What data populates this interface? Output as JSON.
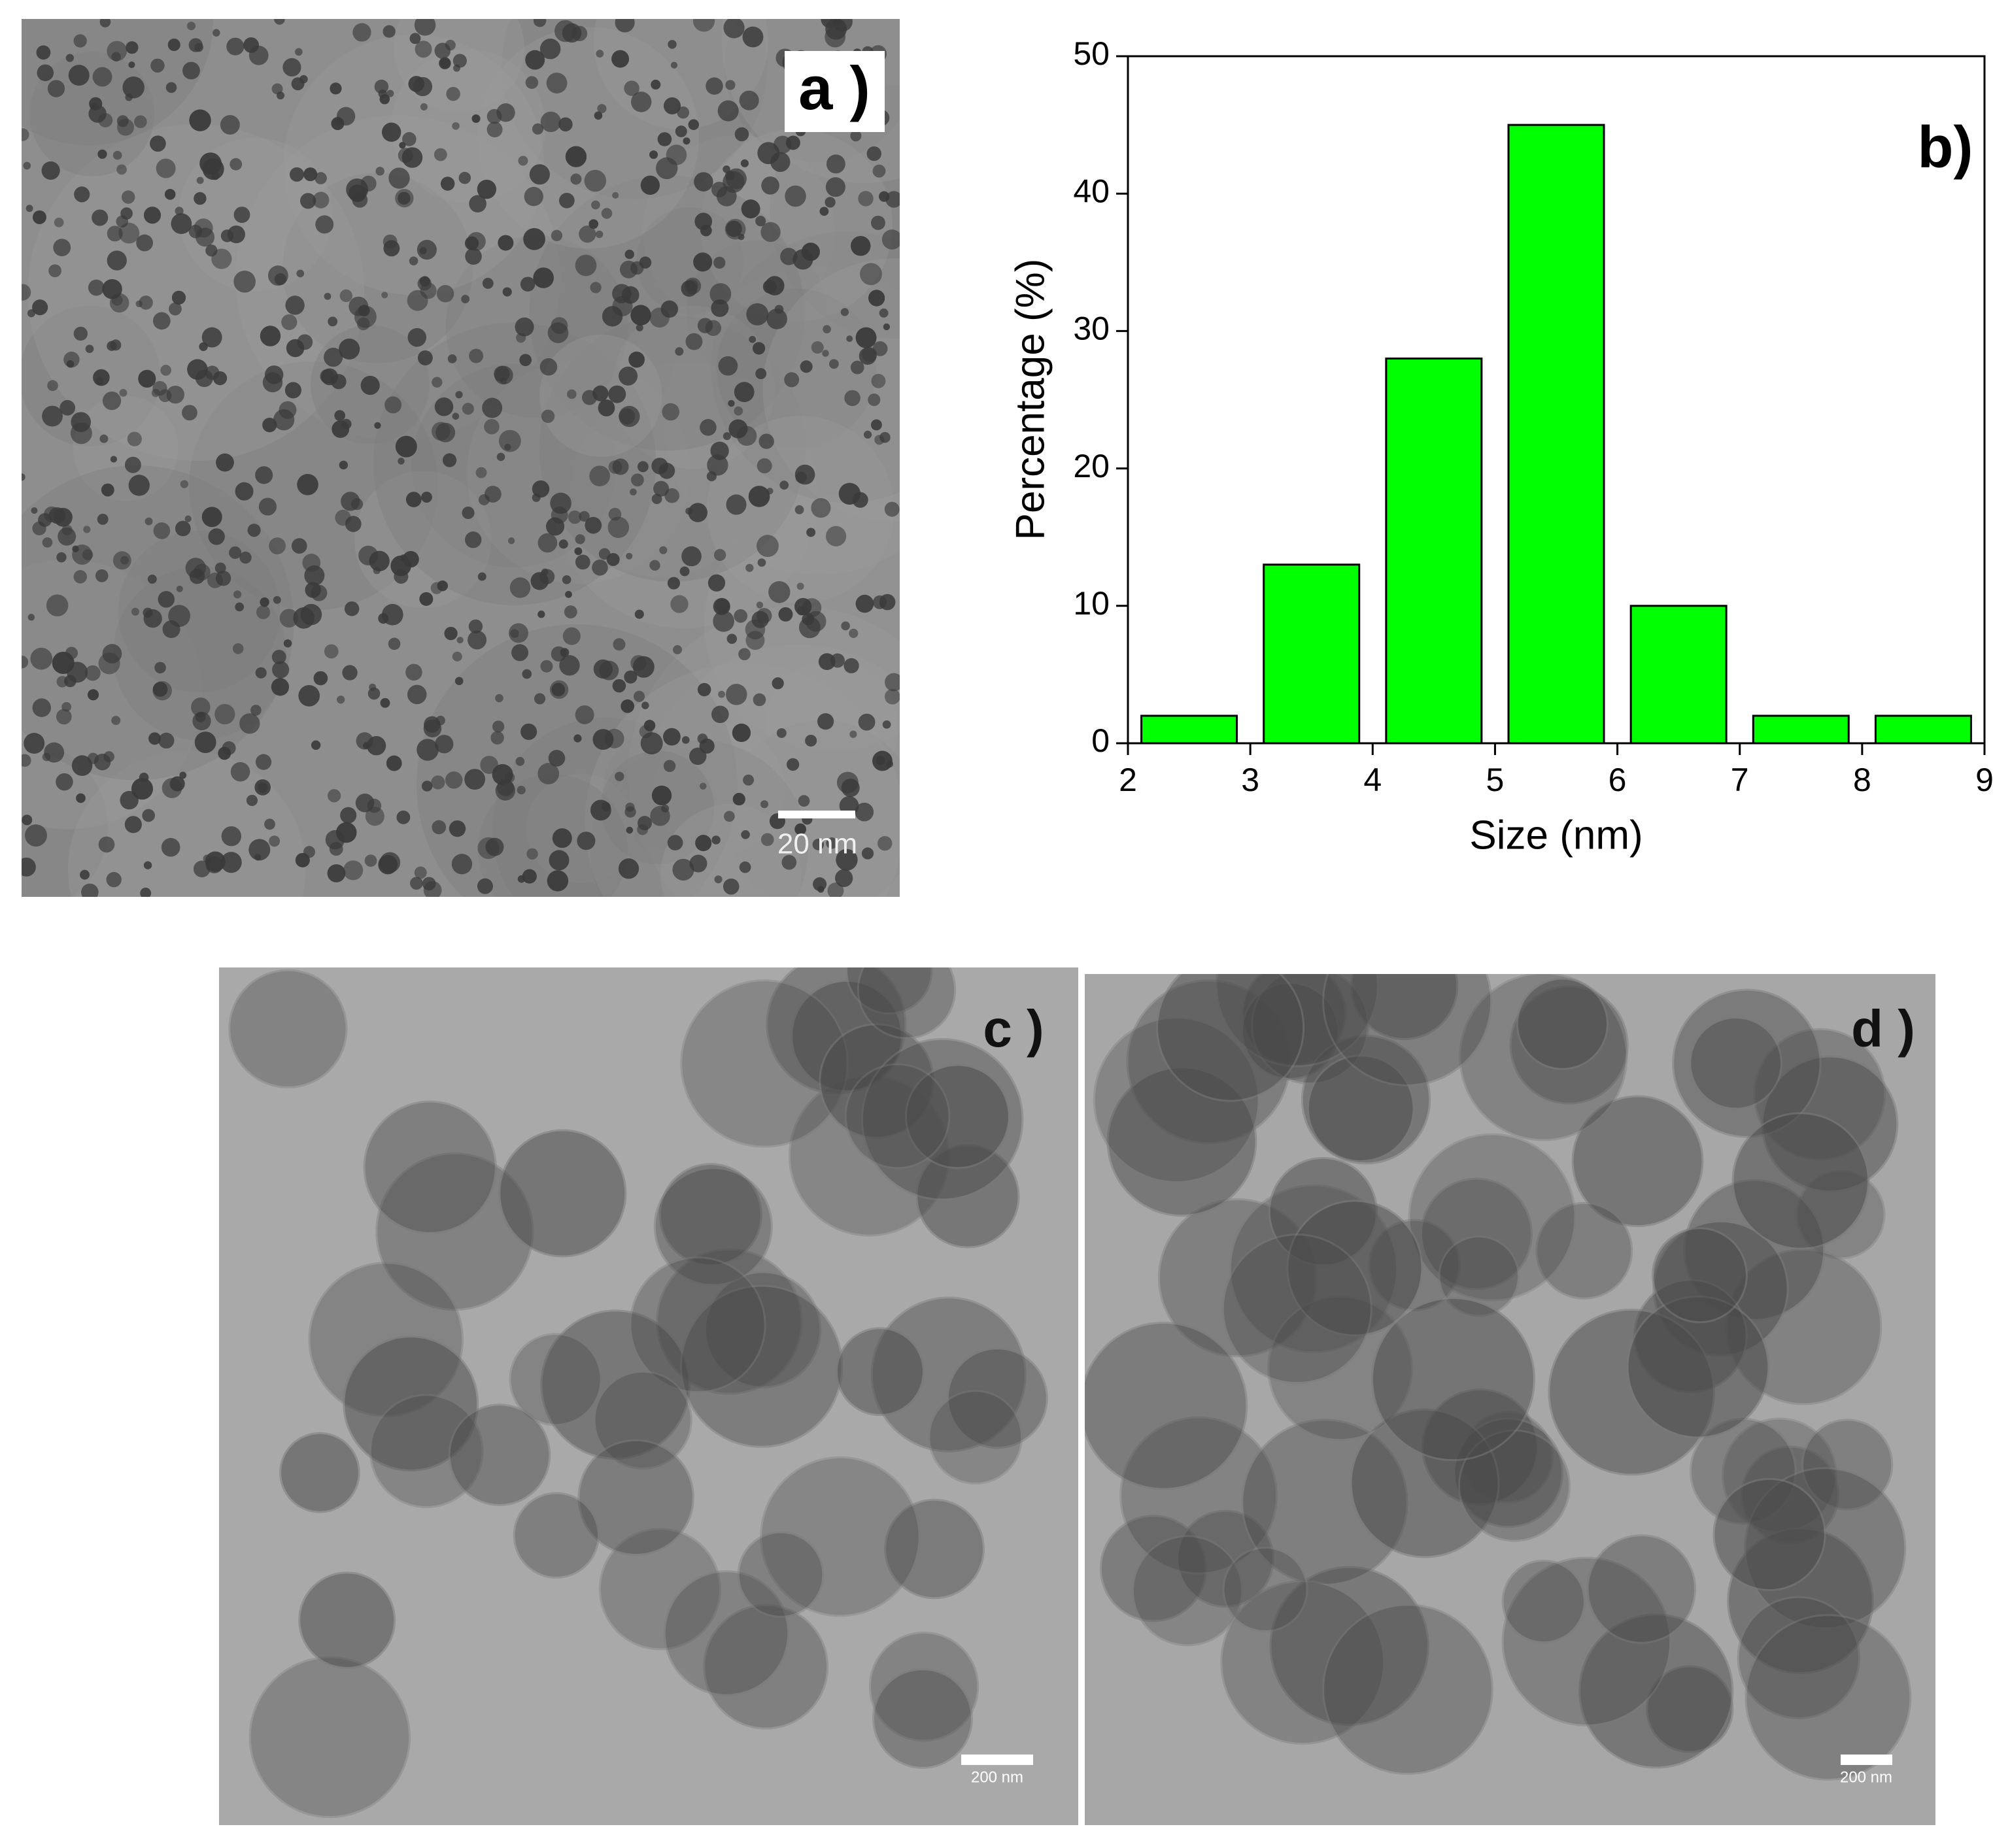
{
  "chart_data": {
    "type": "histogram",
    "panel_label": "b)",
    "x_label": "Size (nm)",
    "y_label": "Percentage (%)",
    "bins": [
      2,
      3,
      4,
      5,
      6,
      7,
      8,
      9
    ],
    "values": [
      2,
      13,
      28,
      45,
      10,
      2,
      2
    ],
    "color": "#00ff00",
    "edge_color": "#000000",
    "xlim": [
      2,
      9
    ],
    "ylim": [
      0,
      50
    ],
    "xticks": [
      2,
      3,
      4,
      5,
      6,
      7,
      8,
      9
    ],
    "yticks": [
      0,
      10,
      20,
      30,
      40,
      50
    ]
  },
  "panels": [
    {
      "label": "a )",
      "scale_bar": "20 nm"
    },
    {
      "label": "c )",
      "scale_bar": "200 nm"
    },
    {
      "label": "d )",
      "scale_bar": "200 nm"
    }
  ]
}
